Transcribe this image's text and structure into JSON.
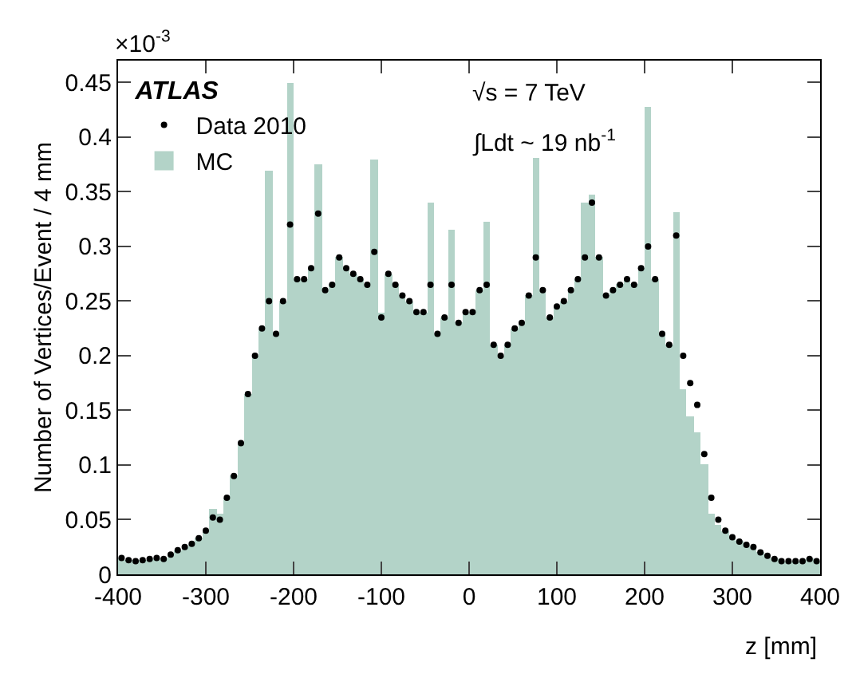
{
  "chart_data": {
    "type": "histogram",
    "xlabel": "z [mm]",
    "ylabel": "Number of Vertices/Event / 4 mm",
    "legend_title": "ATLAS",
    "bins": [
      -400,
      -392,
      -384,
      -376,
      -368,
      -360,
      -352,
      -344,
      -336,
      -328,
      -320,
      -312,
      -304,
      -296,
      -288,
      -280,
      -272,
      -264,
      -256,
      -248,
      -240,
      -232,
      -224,
      -216,
      -208,
      -200,
      -192,
      -184,
      -176,
      -168,
      -160,
      -152,
      -144,
      -136,
      -128,
      -120,
      -112,
      -104,
      -96,
      -88,
      -80,
      -72,
      -64,
      -56,
      -48,
      -40,
      -32,
      -24,
      -16,
      -8,
      0,
      8,
      16,
      24,
      32,
      40,
      48,
      56,
      64,
      72,
      80,
      88,
      96,
      104,
      112,
      120,
      128,
      136,
      144,
      152,
      160,
      168,
      176,
      184,
      192,
      200,
      208,
      216,
      224,
      232,
      240,
      248,
      256,
      264,
      272,
      280,
      288,
      296,
      304,
      312,
      320,
      328,
      336,
      344,
      352,
      360,
      368,
      376,
      384,
      392,
      400
    ],
    "series": [
      {
        "name": "MC",
        "color": "#b3d3c8",
        "values": [
          0.015,
          0.013,
          0.012,
          0.013,
          0.014,
          0.015,
          0.014,
          0.018,
          0.022,
          0.025,
          0.028,
          0.033,
          0.04,
          0.06,
          0.055,
          0.07,
          0.09,
          0.12,
          0.165,
          0.2,
          0.225,
          0.37,
          0.22,
          0.25,
          0.45,
          0.27,
          0.27,
          0.28,
          0.375,
          0.26,
          0.265,
          0.29,
          0.28,
          0.275,
          0.27,
          0.265,
          0.38,
          0.24,
          0.275,
          0.265,
          0.255,
          0.25,
          0.24,
          0.24,
          0.34,
          0.22,
          0.235,
          0.315,
          0.23,
          0.24,
          0.24,
          0.26,
          0.323,
          0.21,
          0.2,
          0.21,
          0.225,
          0.23,
          0.255,
          0.381,
          0.26,
          0.235,
          0.245,
          0.25,
          0.26,
          0.27,
          0.34,
          0.348,
          0.29,
          0.255,
          0.26,
          0.265,
          0.27,
          0.265,
          0.28,
          0.428,
          0.27,
          0.22,
          0.21,
          0.332,
          0.17,
          0.145,
          0.13,
          0.1,
          0.055,
          0.045,
          0.04,
          0.034,
          0.03,
          0.027,
          0.025,
          0.02,
          0.017,
          0.014,
          0.012,
          0.012,
          0.012,
          0.012,
          0.014,
          0.012
        ]
      },
      {
        "name": "Data 2010",
        "type": "scatter",
        "color": "#000000",
        "marker": "circle",
        "x": [
          -396,
          -388,
          -380,
          -372,
          -364,
          -356,
          -348,
          -340,
          -332,
          -324,
          -316,
          -308,
          -300,
          -292,
          -284,
          -276,
          -268,
          -260,
          -252,
          -244,
          -236,
          -228,
          -220,
          -212,
          -204,
          -196,
          -188,
          -180,
          -172,
          -164,
          -156,
          -148,
          -140,
          -132,
          -124,
          -116,
          -108,
          -100,
          -92,
          -84,
          -76,
          -68,
          -60,
          -52,
          -44,
          -36,
          -28,
          -20,
          -12,
          -4,
          4,
          12,
          20,
          28,
          36,
          44,
          52,
          60,
          68,
          76,
          84,
          92,
          100,
          108,
          116,
          124,
          132,
          140,
          148,
          156,
          164,
          172,
          180,
          188,
          196,
          204,
          212,
          220,
          228,
          236,
          244,
          252,
          260,
          268,
          276,
          284,
          292,
          300,
          308,
          316,
          324,
          332,
          340,
          348,
          356,
          364,
          372,
          380,
          388,
          396
        ],
        "values": [
          0.015,
          0.013,
          0.012,
          0.013,
          0.014,
          0.015,
          0.014,
          0.018,
          0.022,
          0.025,
          0.028,
          0.033,
          0.04,
          0.052,
          0.05,
          0.07,
          0.09,
          0.12,
          0.165,
          0.2,
          0.225,
          0.25,
          0.22,
          0.25,
          0.32,
          0.27,
          0.27,
          0.28,
          0.33,
          0.26,
          0.265,
          0.29,
          0.28,
          0.275,
          0.27,
          0.265,
          0.295,
          0.235,
          0.275,
          0.265,
          0.255,
          0.25,
          0.24,
          0.24,
          0.265,
          0.22,
          0.235,
          0.265,
          0.23,
          0.24,
          0.24,
          0.26,
          0.265,
          0.21,
          0.2,
          0.21,
          0.225,
          0.23,
          0.255,
          0.29,
          0.26,
          0.235,
          0.245,
          0.25,
          0.26,
          0.27,
          0.29,
          0.34,
          0.29,
          0.255,
          0.26,
          0.265,
          0.27,
          0.265,
          0.28,
          0.3,
          0.27,
          0.22,
          0.21,
          0.31,
          0.2,
          0.175,
          0.155,
          0.11,
          0.07,
          0.05,
          0.04,
          0.034,
          0.03,
          0.027,
          0.025,
          0.02,
          0.017,
          0.014,
          0.012,
          0.012,
          0.012,
          0.012,
          0.014,
          0.012
        ]
      }
    ],
    "xlim": [
      -400,
      400
    ],
    "xticks": [
      -400,
      -300,
      -200,
      -100,
      0,
      100,
      200,
      300,
      400
    ],
    "ylim": [
      0,
      0.47
    ],
    "yticks": [
      0,
      0.05,
      0.1,
      0.15,
      0.2,
      0.25,
      0.3,
      0.35,
      0.4,
      0.45
    ],
    "legend": "top left",
    "annotations": [
      "×10$^{-3}$",
      "√s = 7 TeV",
      "∫Ldt ~ 19 nb$^{-1}$"
    ]
  }
}
